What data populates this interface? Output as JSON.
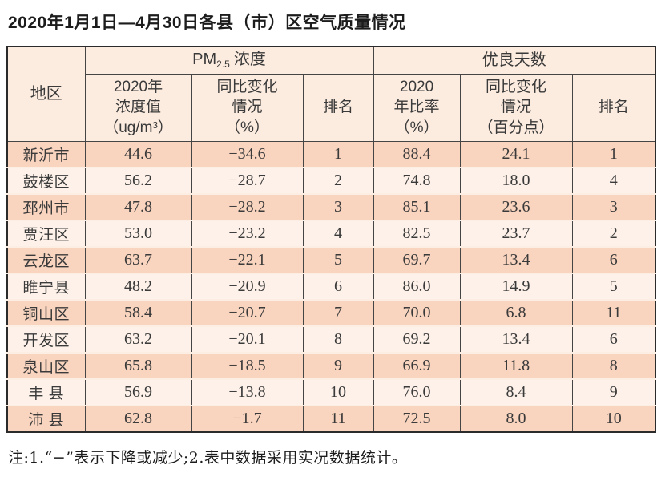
{
  "title": "2020年1月1日—4月30日各县（市）区空气质量情况",
  "table": {
    "corner_header": "地区",
    "group_headers": {
      "pm25_prefix": "PM",
      "pm25_sub": "2.5",
      "pm25_suffix": "浓度",
      "good_days": "优良天数"
    },
    "sub_headers": {
      "pm_value": "2020年\n浓度值\n（ug/m³）",
      "pm_change": "同比变化\n情况\n（%）",
      "pm_rank": "排名",
      "gd_ratio": "2020\n年比率\n（%）",
      "gd_change": "同比变化\n情况\n（百分点）",
      "gd_rank": "排名"
    },
    "rows": [
      {
        "region": "新沂市",
        "pm_value": "44.6",
        "pm_change": "−34.6",
        "pm_rank": "1",
        "gd_ratio": "88.4",
        "gd_change": "24.1",
        "gd_rank": "1"
      },
      {
        "region": "鼓楼区",
        "pm_value": "56.2",
        "pm_change": "−28.7",
        "pm_rank": "2",
        "gd_ratio": "74.8",
        "gd_change": "18.0",
        "gd_rank": "4"
      },
      {
        "region": "邳州市",
        "pm_value": "47.8",
        "pm_change": "−28.2",
        "pm_rank": "3",
        "gd_ratio": "85.1",
        "gd_change": "23.6",
        "gd_rank": "3"
      },
      {
        "region": "贾汪区",
        "pm_value": "53.0",
        "pm_change": "−23.2",
        "pm_rank": "4",
        "gd_ratio": "82.5",
        "gd_change": "23.7",
        "gd_rank": "2"
      },
      {
        "region": "云龙区",
        "pm_value": "63.7",
        "pm_change": "−22.1",
        "pm_rank": "5",
        "gd_ratio": "69.7",
        "gd_change": "13.4",
        "gd_rank": "6"
      },
      {
        "region": "睢宁县",
        "pm_value": "48.2",
        "pm_change": "−20.9",
        "pm_rank": "6",
        "gd_ratio": "86.0",
        "gd_change": "14.9",
        "gd_rank": "5"
      },
      {
        "region": "铜山区",
        "pm_value": "58.4",
        "pm_change": "−20.7",
        "pm_rank": "7",
        "gd_ratio": "70.0",
        "gd_change": "6.8",
        "gd_rank": "11"
      },
      {
        "region": "开发区",
        "pm_value": "63.2",
        "pm_change": "−20.1",
        "pm_rank": "8",
        "gd_ratio": "69.2",
        "gd_change": "13.4",
        "gd_rank": "6"
      },
      {
        "region": "泉山区",
        "pm_value": "65.8",
        "pm_change": "−18.5",
        "pm_rank": "9",
        "gd_ratio": "66.9",
        "gd_change": "11.8",
        "gd_rank": "8"
      },
      {
        "region": "丰 县",
        "pm_value": "56.9",
        "pm_change": "−13.8",
        "pm_rank": "10",
        "gd_ratio": "76.0",
        "gd_change": "8.4",
        "gd_rank": "9"
      },
      {
        "region": "沛 县",
        "pm_value": "62.8",
        "pm_change": "−1.7",
        "pm_rank": "11",
        "gd_ratio": "72.5",
        "gd_change": "8.0",
        "gd_rank": "10"
      }
    ]
  },
  "note": "注:1.“−”表示下降或减少;2.表中数据采用实况数据统计。",
  "colors": {
    "row_salmon": "#f9d4bf",
    "row_cream": "#fdf1e9",
    "header_bg": "#fcebdf",
    "border_dark": "#454545",
    "outer_border": "#2b2b2b",
    "row_separator": "#fdeee4",
    "text_dark": "#1c1c1c",
    "text_table": "#3a3a3a"
  }
}
